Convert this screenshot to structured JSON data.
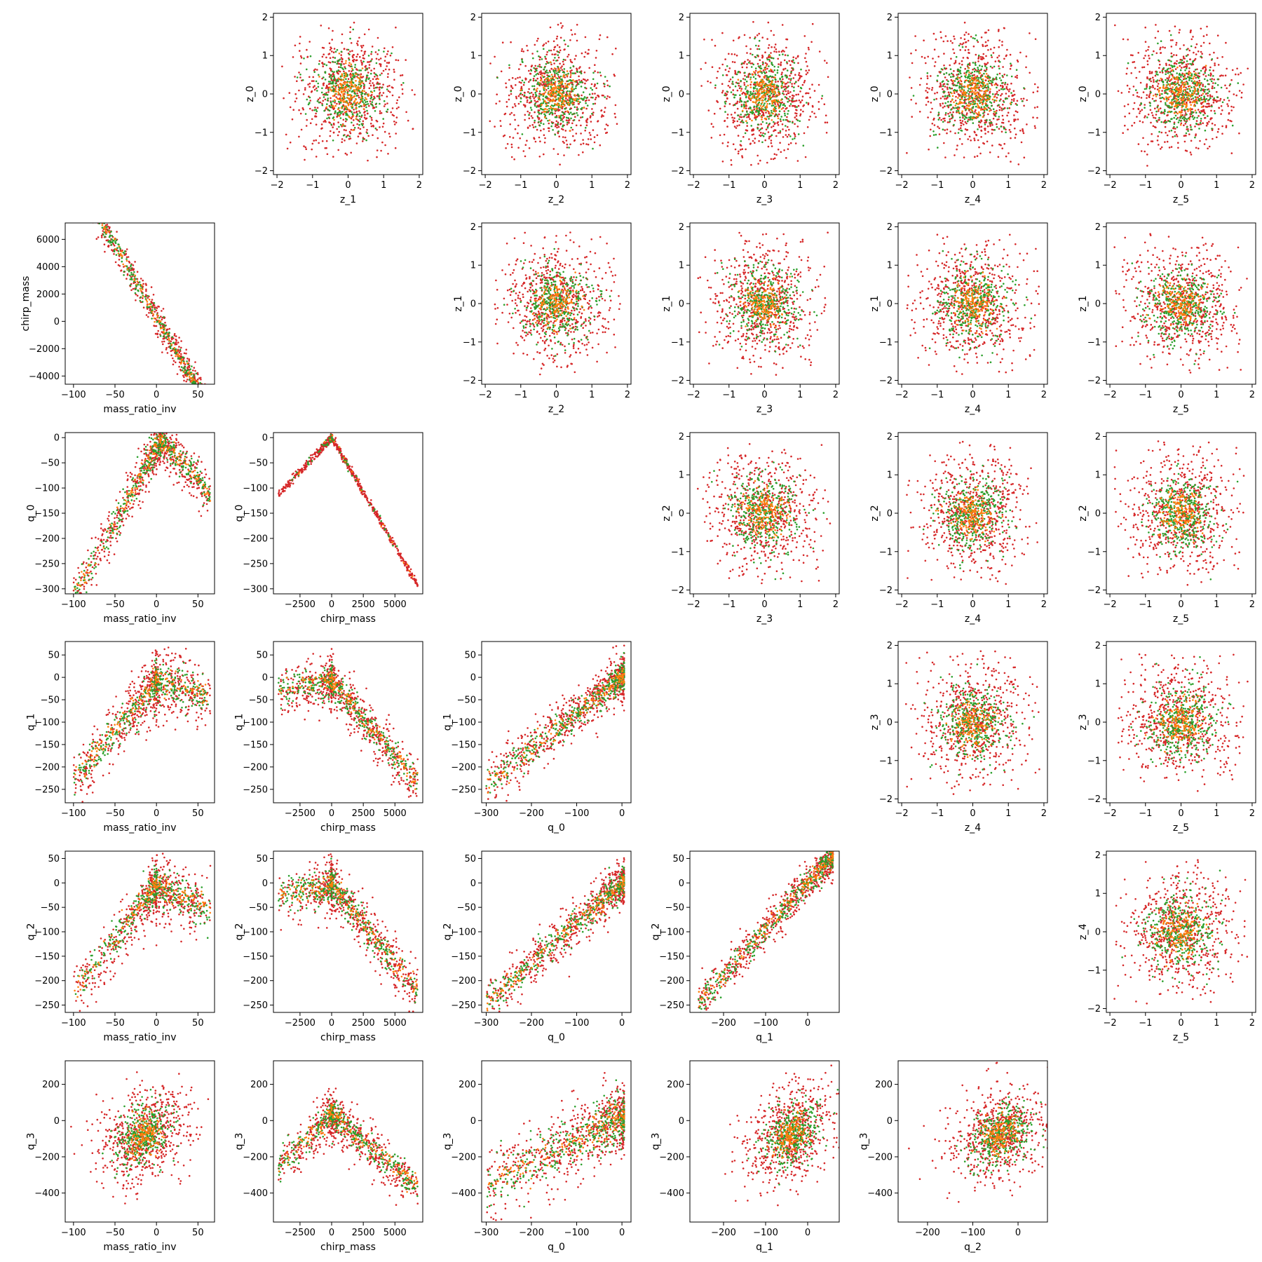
{
  "figure": {
    "type": "scatter-matrix",
    "colors": {
      "series_a": "#d62728",
      "series_b": "#2ca02c",
      "series_c": "#ff7f0e"
    }
  },
  "chart_data": [
    {
      "type": "scatter",
      "row": 0,
      "col": 1,
      "xlabel": "z_1",
      "ylabel": "z_0",
      "xlim": [
        -2.1,
        2.1
      ],
      "ylim": [
        -2.1,
        2.1
      ],
      "xticks": [
        -2,
        -1,
        0,
        1,
        2
      ],
      "yticks": [
        -2,
        -1,
        0,
        1,
        2
      ],
      "dist": "normal",
      "cx": 0,
      "cy": 0,
      "sx": 0.8,
      "sy": 0.8,
      "rho": 0
    },
    {
      "type": "scatter",
      "row": 0,
      "col": 2,
      "xlabel": "z_2",
      "ylabel": "z_0",
      "xlim": [
        -2.1,
        2.1
      ],
      "ylim": [
        -2.1,
        2.1
      ],
      "xticks": [
        -2,
        -1,
        0,
        1,
        2
      ],
      "yticks": [
        -2,
        -1,
        0,
        1,
        2
      ],
      "dist": "normal",
      "cx": 0,
      "cy": 0,
      "sx": 0.8,
      "sy": 0.8,
      "rho": 0
    },
    {
      "type": "scatter",
      "row": 0,
      "col": 3,
      "xlabel": "z_3",
      "ylabel": "z_0",
      "xlim": [
        -2.1,
        2.1
      ],
      "ylim": [
        -2.1,
        2.1
      ],
      "xticks": [
        -2,
        -1,
        0,
        1,
        2
      ],
      "yticks": [
        -2,
        -1,
        0,
        1,
        2
      ],
      "dist": "normal",
      "cx": 0,
      "cy": 0,
      "sx": 0.8,
      "sy": 0.8,
      "rho": 0
    },
    {
      "type": "scatter",
      "row": 0,
      "col": 4,
      "xlabel": "z_4",
      "ylabel": "z_0",
      "xlim": [
        -2.1,
        2.1
      ],
      "ylim": [
        -2.1,
        2.1
      ],
      "xticks": [
        -2,
        -1,
        0,
        1,
        2
      ],
      "yticks": [
        -2,
        -1,
        0,
        1,
        2
      ],
      "dist": "normal",
      "cx": 0,
      "cy": 0,
      "sx": 0.8,
      "sy": 0.8,
      "rho": 0
    },
    {
      "type": "scatter",
      "row": 0,
      "col": 5,
      "xlabel": "z_5",
      "ylabel": "z_0",
      "xlim": [
        -2.1,
        2.1
      ],
      "ylim": [
        -2.1,
        2.1
      ],
      "xticks": [
        -2,
        -1,
        0,
        1,
        2
      ],
      "yticks": [
        -2,
        -1,
        0,
        1,
        2
      ],
      "dist": "normal",
      "cx": 0,
      "cy": 0,
      "sx": 0.8,
      "sy": 0.8,
      "rho": 0
    },
    {
      "type": "scatter",
      "row": 1,
      "col": 0,
      "xlabel": "mass_ratio_inv",
      "ylabel": "chirp_mass",
      "xlim": [
        -110,
        70
      ],
      "ylim": [
        -4600,
        7200
      ],
      "xticks": [
        -100,
        -50,
        0,
        50
      ],
      "yticks": [
        -4000,
        -2000,
        0,
        2000,
        4000,
        6000
      ],
      "dist": "linear",
      "xr": [
        -100,
        65
      ],
      "slope": -105,
      "icept": 300,
      "noise": 650,
      "density": "low-x"
    },
    {
      "type": "scatter",
      "row": 1,
      "col": 2,
      "xlabel": "z_2",
      "ylabel": "z_1",
      "xlim": [
        -2.1,
        2.1
      ],
      "ylim": [
        -2.1,
        2.1
      ],
      "xticks": [
        -2,
        -1,
        0,
        1,
        2
      ],
      "yticks": [
        -2,
        -1,
        0,
        1,
        2
      ],
      "dist": "normal",
      "cx": 0,
      "cy": 0,
      "sx": 0.8,
      "sy": 0.8,
      "rho": 0
    },
    {
      "type": "scatter",
      "row": 1,
      "col": 3,
      "xlabel": "z_3",
      "ylabel": "z_1",
      "xlim": [
        -2.1,
        2.1
      ],
      "ylim": [
        -2.1,
        2.1
      ],
      "xticks": [
        -2,
        -1,
        0,
        1,
        2
      ],
      "yticks": [
        -2,
        -1,
        0,
        1,
        2
      ],
      "dist": "normal",
      "cx": 0,
      "cy": 0,
      "sx": 0.8,
      "sy": 0.8,
      "rho": 0
    },
    {
      "type": "scatter",
      "row": 1,
      "col": 4,
      "xlabel": "z_4",
      "ylabel": "z_1",
      "xlim": [
        -2.1,
        2.1
      ],
      "ylim": [
        -2.1,
        2.1
      ],
      "xticks": [
        -2,
        -1,
        0,
        1,
        2
      ],
      "yticks": [
        -2,
        -1,
        0,
        1,
        2
      ],
      "dist": "normal",
      "cx": 0,
      "cy": 0,
      "sx": 0.8,
      "sy": 0.8,
      "rho": 0
    },
    {
      "type": "scatter",
      "row": 1,
      "col": 5,
      "xlabel": "z_5",
      "ylabel": "z_1",
      "xlim": [
        -2.1,
        2.1
      ],
      "ylim": [
        -2.1,
        2.1
      ],
      "xticks": [
        -2,
        -1,
        0,
        1,
        2
      ],
      "yticks": [
        -2,
        -1,
        0,
        1,
        2
      ],
      "dist": "normal",
      "cx": 0,
      "cy": 0,
      "sx": 0.8,
      "sy": 0.8,
      "rho": 0
    },
    {
      "type": "scatter",
      "row": 2,
      "col": 0,
      "xlabel": "mass_ratio_inv",
      "ylabel": "q_0",
      "xlim": [
        -110,
        70
      ],
      "ylim": [
        -310,
        10
      ],
      "xticks": [
        -100,
        -50,
        0,
        50
      ],
      "yticks": [
        -300,
        -250,
        -200,
        -150,
        -100,
        -50,
        0
      ],
      "dist": "peak",
      "xr": [
        -100,
        65
      ],
      "peak": 5,
      "top": 0,
      "lslope": 3.0,
      "rslope": -1.8,
      "noise": 25
    },
    {
      "type": "scatter",
      "row": 2,
      "col": 1,
      "xlabel": "chirp_mass",
      "ylabel": "q_0",
      "xlim": [
        -4600,
        7200
      ],
      "ylim": [
        -310,
        10
      ],
      "xticks": [
        -2500,
        0,
        2500,
        5000
      ],
      "yticks": [
        -300,
        -250,
        -200,
        -150,
        -100,
        -50,
        0
      ],
      "dist": "vshape",
      "xr": [
        -4200,
        6800
      ],
      "peak": 0,
      "top": 0,
      "lslope": 0.027,
      "rslope": -0.043,
      "noise": 4
    },
    {
      "type": "scatter",
      "row": 2,
      "col": 3,
      "xlabel": "z_3",
      "ylabel": "z_2",
      "xlim": [
        -2.1,
        2.1
      ],
      "ylim": [
        -2.1,
        2.1
      ],
      "xticks": [
        -2,
        -1,
        0,
        1,
        2
      ],
      "yticks": [
        -2,
        -1,
        0,
        1,
        2
      ],
      "dist": "normal",
      "cx": 0,
      "cy": 0,
      "sx": 0.8,
      "sy": 0.8,
      "rho": 0
    },
    {
      "type": "scatter",
      "row": 2,
      "col": 4,
      "xlabel": "z_4",
      "ylabel": "z_2",
      "xlim": [
        -2.1,
        2.1
      ],
      "ylim": [
        -2.1,
        2.1
      ],
      "xticks": [
        -2,
        -1,
        0,
        1,
        2
      ],
      "yticks": [
        -2,
        -1,
        0,
        1,
        2
      ],
      "dist": "normal",
      "cx": 0,
      "cy": 0,
      "sx": 0.8,
      "sy": 0.8,
      "rho": 0
    },
    {
      "type": "scatter",
      "row": 2,
      "col": 5,
      "xlabel": "z_5",
      "ylabel": "z_2",
      "xlim": [
        -2.1,
        2.1
      ],
      "ylim": [
        -2.1,
        2.1
      ],
      "xticks": [
        -2,
        -1,
        0,
        1,
        2
      ],
      "yticks": [
        -2,
        -1,
        0,
        1,
        2
      ],
      "dist": "normal",
      "cx": 0,
      "cy": 0,
      "sx": 0.8,
      "sy": 0.8,
      "rho": 0
    },
    {
      "type": "scatter",
      "row": 3,
      "col": 0,
      "xlabel": "mass_ratio_inv",
      "ylabel": "q_1",
      "xlim": [
        -110,
        70
      ],
      "ylim": [
        -280,
        80
      ],
      "xticks": [
        -100,
        -50,
        0,
        50
      ],
      "yticks": [
        -250,
        -200,
        -150,
        -100,
        -50,
        0,
        50
      ],
      "dist": "peak",
      "xr": [
        -100,
        65
      ],
      "peak": 0,
      "top": -5,
      "lslope": 2.2,
      "rslope": -0.5,
      "noise": 35
    },
    {
      "type": "scatter",
      "row": 3,
      "col": 1,
      "xlabel": "chirp_mass",
      "ylabel": "q_1",
      "xlim": [
        -4600,
        7200
      ],
      "ylim": [
        -280,
        80
      ],
      "xticks": [
        -2500,
        0,
        2500,
        5000
      ],
      "yticks": [
        -250,
        -200,
        -150,
        -100,
        -50,
        0,
        50
      ],
      "dist": "peak",
      "xr": [
        -4200,
        6800
      ],
      "peak": 0,
      "top": -5,
      "lslope": 0.004,
      "rslope": -0.033,
      "noise": 28
    },
    {
      "type": "scatter",
      "row": 3,
      "col": 2,
      "xlabel": "q_0",
      "ylabel": "q_1",
      "xlim": [
        -310,
        20
      ],
      "ylim": [
        -280,
        80
      ],
      "xticks": [
        -300,
        -200,
        -100,
        0
      ],
      "yticks": [
        -250,
        -200,
        -150,
        -100,
        -50,
        0,
        50
      ],
      "dist": "linear",
      "xr": [
        -300,
        5
      ],
      "slope": 0.8,
      "icept": 0,
      "noise": 28,
      "density": "high-x"
    },
    {
      "type": "scatter",
      "row": 3,
      "col": 4,
      "xlabel": "z_4",
      "ylabel": "z_3",
      "xlim": [
        -2.1,
        2.1
      ],
      "ylim": [
        -2.1,
        2.1
      ],
      "xticks": [
        -2,
        -1,
        0,
        1,
        2
      ],
      "yticks": [
        -2,
        -1,
        0,
        1,
        2
      ],
      "dist": "normal",
      "cx": 0,
      "cy": 0,
      "sx": 0.8,
      "sy": 0.8,
      "rho": 0
    },
    {
      "type": "scatter",
      "row": 3,
      "col": 5,
      "xlabel": "z_5",
      "ylabel": "z_3",
      "xlim": [
        -2.1,
        2.1
      ],
      "ylim": [
        -2.1,
        2.1
      ],
      "xticks": [
        -2,
        -1,
        0,
        1,
        2
      ],
      "yticks": [
        -2,
        -1,
        0,
        1,
        2
      ],
      "dist": "normal",
      "cx": 0,
      "cy": 0,
      "sx": 0.8,
      "sy": 0.8,
      "rho": 0
    },
    {
      "type": "scatter",
      "row": 4,
      "col": 0,
      "xlabel": "mass_ratio_inv",
      "ylabel": "q_2",
      "xlim": [
        -110,
        70
      ],
      "ylim": [
        -265,
        65
      ],
      "xticks": [
        -100,
        -50,
        0,
        50
      ],
      "yticks": [
        -250,
        -200,
        -150,
        -100,
        -50,
        0,
        50
      ],
      "dist": "peak",
      "xr": [
        -100,
        65
      ],
      "peak": 0,
      "top": 0,
      "lslope": 2.2,
      "rslope": -0.8,
      "noise": 30
    },
    {
      "type": "scatter",
      "row": 4,
      "col": 1,
      "xlabel": "chirp_mass",
      "ylabel": "q_2",
      "xlim": [
        -4600,
        7200
      ],
      "ylim": [
        -265,
        65
      ],
      "xticks": [
        -2500,
        0,
        2500,
        5000
      ],
      "yticks": [
        -250,
        -200,
        -150,
        -100,
        -50,
        0,
        50
      ],
      "dist": "peak",
      "xr": [
        -4200,
        6800
      ],
      "peak": 0,
      "top": 0,
      "lslope": 0.005,
      "rslope": -0.032,
      "noise": 28
    },
    {
      "type": "scatter",
      "row": 4,
      "col": 2,
      "xlabel": "q_0",
      "ylabel": "q_2",
      "xlim": [
        -310,
        20
      ],
      "ylim": [
        -265,
        65
      ],
      "xticks": [
        -300,
        -200,
        -100,
        0
      ],
      "yticks": [
        -250,
        -200,
        -150,
        -100,
        -50,
        0,
        50
      ],
      "dist": "linear",
      "xr": [
        -300,
        5
      ],
      "slope": 0.82,
      "icept": 0,
      "noise": 24,
      "density": "high-x"
    },
    {
      "type": "scatter",
      "row": 4,
      "col": 3,
      "xlabel": "q_1",
      "ylabel": "q_2",
      "xlim": [
        -280,
        75
      ],
      "ylim": [
        -265,
        65
      ],
      "xticks": [
        -200,
        -100,
        0
      ],
      "yticks": [
        -250,
        -200,
        -150,
        -100,
        -50,
        0,
        50
      ],
      "dist": "linear",
      "xr": [
        -260,
        60
      ],
      "slope": 0.95,
      "icept": 0,
      "noise": 22,
      "density": "high-x"
    },
    {
      "type": "scatter",
      "row": 4,
      "col": 5,
      "xlabel": "z_5",
      "ylabel": "z_4",
      "xlim": [
        -2.1,
        2.1
      ],
      "ylim": [
        -2.1,
        2.1
      ],
      "xticks": [
        -2,
        -1,
        0,
        1,
        2
      ],
      "yticks": [
        -2,
        -1,
        0,
        1,
        2
      ],
      "dist": "normal",
      "cx": 0,
      "cy": 0,
      "sx": 0.8,
      "sy": 0.8,
      "rho": 0
    },
    {
      "type": "scatter",
      "row": 5,
      "col": 0,
      "xlabel": "mass_ratio_inv",
      "ylabel": "q_3",
      "xlim": [
        -110,
        70
      ],
      "ylim": [
        -560,
        330
      ],
      "xticks": [
        -100,
        -50,
        0,
        50
      ],
      "yticks": [
        -400,
        -200,
        0,
        200
      ],
      "dist": "normal",
      "cx": -15,
      "cy": -80,
      "sx": 28,
      "sy": 140,
      "rho": 0.35
    },
    {
      "type": "scatter",
      "row": 5,
      "col": 1,
      "xlabel": "chirp_mass",
      "ylabel": "q_3",
      "xlim": [
        -4600,
        7200
      ],
      "ylim": [
        -560,
        330
      ],
      "xticks": [
        -2500,
        0,
        2500,
        5000
      ],
      "yticks": [
        -400,
        -200,
        0,
        200
      ],
      "dist": "peak",
      "xr": [
        -4200,
        6800
      ],
      "peak": 0,
      "top": 50,
      "lslope": 0.07,
      "rslope": -0.06,
      "noise": 65
    },
    {
      "type": "scatter",
      "row": 5,
      "col": 2,
      "xlabel": "q_0",
      "ylabel": "q_3",
      "xlim": [
        -310,
        20
      ],
      "ylim": [
        -560,
        330
      ],
      "xticks": [
        -300,
        -200,
        -100,
        0
      ],
      "yticks": [
        -400,
        -200,
        0,
        200
      ],
      "dist": "linear",
      "xr": [
        -300,
        5
      ],
      "slope": 1.2,
      "icept": 10,
      "noise": 110,
      "density": "high-x"
    },
    {
      "type": "scatter",
      "row": 5,
      "col": 3,
      "xlabel": "q_1",
      "ylabel": "q_3",
      "xlim": [
        -280,
        75
      ],
      "ylim": [
        -560,
        330
      ],
      "xticks": [
        -200,
        -100,
        0
      ],
      "yticks": [
        -400,
        -200,
        0,
        200
      ],
      "dist": "normal",
      "cx": -40,
      "cy": -80,
      "sx": 55,
      "sy": 140,
      "rho": 0.3
    },
    {
      "type": "scatter",
      "row": 5,
      "col": 4,
      "xlabel": "q_2",
      "ylabel": "q_3",
      "xlim": [
        -265,
        65
      ],
      "ylim": [
        -560,
        330
      ],
      "xticks": [
        -200,
        -100,
        0
      ],
      "yticks": [
        -400,
        -200,
        0,
        200
      ],
      "dist": "normal",
      "cx": -40,
      "cy": -80,
      "sx": 55,
      "sy": 140,
      "rho": 0.25
    }
  ]
}
